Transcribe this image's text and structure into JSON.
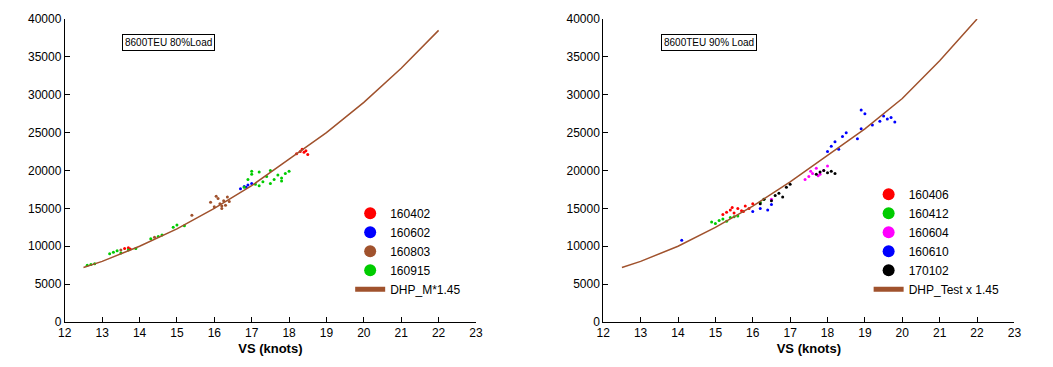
{
  "chart_data": [
    {
      "type": "scatter",
      "annotation": "8600TEU 80%Load",
      "x_label": "VS (knots)",
      "xlim": [
        12,
        23
      ],
      "xticks": [
        12,
        13,
        14,
        15,
        16,
        17,
        18,
        19,
        20,
        21,
        22,
        23
      ],
      "ylim": [
        0,
        40000
      ],
      "yticks": [
        0,
        5000,
        10000,
        15000,
        20000,
        25000,
        30000,
        35000,
        40000
      ],
      "grid": false,
      "legend": "bottom right",
      "series": [
        {
          "name": "160402",
          "type": "scatter",
          "marker": "circle",
          "color": "#ff0000",
          "x": [
            13.6,
            13.7,
            13.75,
            18.2,
            18.3,
            18.35,
            18.4,
            18.45,
            18.5
          ],
          "values": [
            9700,
            9800,
            9650,
            22200,
            22500,
            22800,
            22400,
            22600,
            22100
          ]
        },
        {
          "name": "160602",
          "type": "scatter",
          "marker": "circle",
          "color": "#0000ff",
          "x": [
            16.7,
            16.8,
            16.9,
            17.0,
            16.85
          ],
          "values": [
            17600,
            17900,
            18100,
            18300,
            17800
          ]
        },
        {
          "name": "160803",
          "type": "scatter",
          "marker": "circle",
          "color": "#a0522d",
          "x": [
            13.5,
            14.4,
            15.4,
            15.9,
            16.0,
            16.1,
            16.15,
            16.2,
            16.25,
            16.3,
            16.35,
            16.4,
            16.05,
            16.2
          ],
          "values": [
            9500,
            11200,
            14100,
            15800,
            15200,
            16300,
            15600,
            15000,
            16000,
            15400,
            16500,
            15900,
            16600,
            15300
          ]
        },
        {
          "name": "160915",
          "type": "scatter",
          "marker": "circle",
          "color": "#00cc00",
          "x": [
            12.6,
            12.7,
            12.8,
            13.2,
            13.3,
            13.4,
            13.5,
            13.7,
            13.9,
            14.3,
            14.5,
            14.6,
            14.9,
            15.0,
            15.2,
            16.8,
            16.9,
            17.0,
            17.1,
            17.2,
            17.3,
            17.4,
            17.5,
            17.6,
            17.7,
            17.8,
            17.9,
            18.0,
            17.2,
            17.5,
            17.0,
            17.8
          ],
          "values": [
            7500,
            7600,
            7700,
            9000,
            9200,
            9400,
            9100,
            9500,
            9700,
            11000,
            11300,
            11500,
            12500,
            12800,
            12700,
            17800,
            18800,
            19500,
            18200,
            19800,
            18500,
            19200,
            20000,
            18800,
            19400,
            19000,
            19600,
            19900,
            18000,
            18300,
            19900,
            18600
          ]
        },
        {
          "name": "DHP_M*1.45",
          "type": "line",
          "line_style": "solid",
          "color": "#a0522d",
          "x": [
            12.5,
            13,
            14,
            15,
            16,
            17,
            18,
            19,
            20,
            21,
            22
          ],
          "values": [
            7200,
            8000,
            10000,
            12300,
            15000,
            18000,
            21500,
            25000,
            29000,
            33500,
            38500
          ]
        }
      ]
    },
    {
      "type": "scatter",
      "annotation": "8600TEU 90% Load",
      "x_label": "VS (knots)",
      "xlim": [
        12,
        23
      ],
      "xticks": [
        12,
        13,
        14,
        15,
        16,
        17,
        18,
        19,
        20,
        21,
        22,
        23
      ],
      "ylim": [
        0,
        40000
      ],
      "yticks": [
        0,
        5000,
        10000,
        15000,
        20000,
        25000,
        30000,
        35000,
        40000
      ],
      "grid": false,
      "legend": "bottom right",
      "series": [
        {
          "name": "160406",
          "type": "scatter",
          "marker": "circle",
          "color": "#ff0000",
          "x": [
            15.2,
            15.3,
            15.4,
            15.5,
            15.6,
            15.7,
            15.8,
            15.9,
            16.0,
            15.45,
            15.75
          ],
          "values": [
            14200,
            14500,
            14800,
            14400,
            15000,
            14700,
            15300,
            15000,
            15600,
            15100,
            14600
          ]
        },
        {
          "name": "160412",
          "type": "scatter",
          "marker": "circle",
          "color": "#00cc00",
          "x": [
            14.9,
            15.0,
            15.1,
            15.2,
            15.3,
            15.4,
            15.5,
            15.6,
            16.2,
            16.3
          ],
          "values": [
            13200,
            13000,
            13400,
            13600,
            13300,
            13800,
            13900,
            14000,
            15800,
            16200
          ]
        },
        {
          "name": "160604",
          "type": "scatter",
          "marker": "circle",
          "color": "#ff00ff",
          "x": [
            16.5,
            17.4,
            17.5,
            17.6,
            17.7,
            17.8,
            17.9,
            18.0,
            17.55,
            17.75
          ],
          "values": [
            16200,
            18800,
            19200,
            19600,
            20300,
            19500,
            20000,
            20600,
            19900,
            19300
          ]
        },
        {
          "name": "160610",
          "type": "scatter",
          "marker": "circle",
          "color": "#0000ff",
          "x": [
            14.1,
            16.0,
            16.2,
            16.4,
            16.5,
            18.0,
            18.1,
            18.2,
            18.3,
            18.4,
            18.5,
            18.8,
            18.9,
            19.0,
            19.2,
            19.4,
            19.5,
            19.6,
            19.7,
            19.8,
            18.9
          ],
          "values": [
            10800,
            14600,
            15000,
            14800,
            15500,
            22500,
            23200,
            23800,
            22800,
            24500,
            25000,
            24200,
            25500,
            27500,
            26000,
            26500,
            27200,
            26800,
            27000,
            26400,
            28000
          ]
        },
        {
          "name": "170102",
          "type": "scatter",
          "marker": "circle",
          "color": "#000000",
          "x": [
            16.2,
            16.3,
            16.5,
            16.6,
            16.7,
            16.8,
            16.9,
            17.0,
            17.7,
            17.8,
            17.9,
            18.0,
            18.1,
            18.2
          ],
          "values": [
            15600,
            16200,
            16000,
            16700,
            17000,
            16500,
            17800,
            18200,
            19500,
            19800,
            20000,
            19700,
            19900,
            19600
          ]
        },
        {
          "name": "DHP_Test x 1.45",
          "type": "line",
          "line_style": "solid",
          "color": "#a0522d",
          "x": [
            12.5,
            13,
            14,
            15,
            16,
            17,
            18,
            19,
            20,
            21,
            22
          ],
          "values": [
            7200,
            8000,
            10000,
            12500,
            15300,
            18500,
            22000,
            25500,
            29500,
            34500,
            40000
          ]
        }
      ]
    }
  ]
}
